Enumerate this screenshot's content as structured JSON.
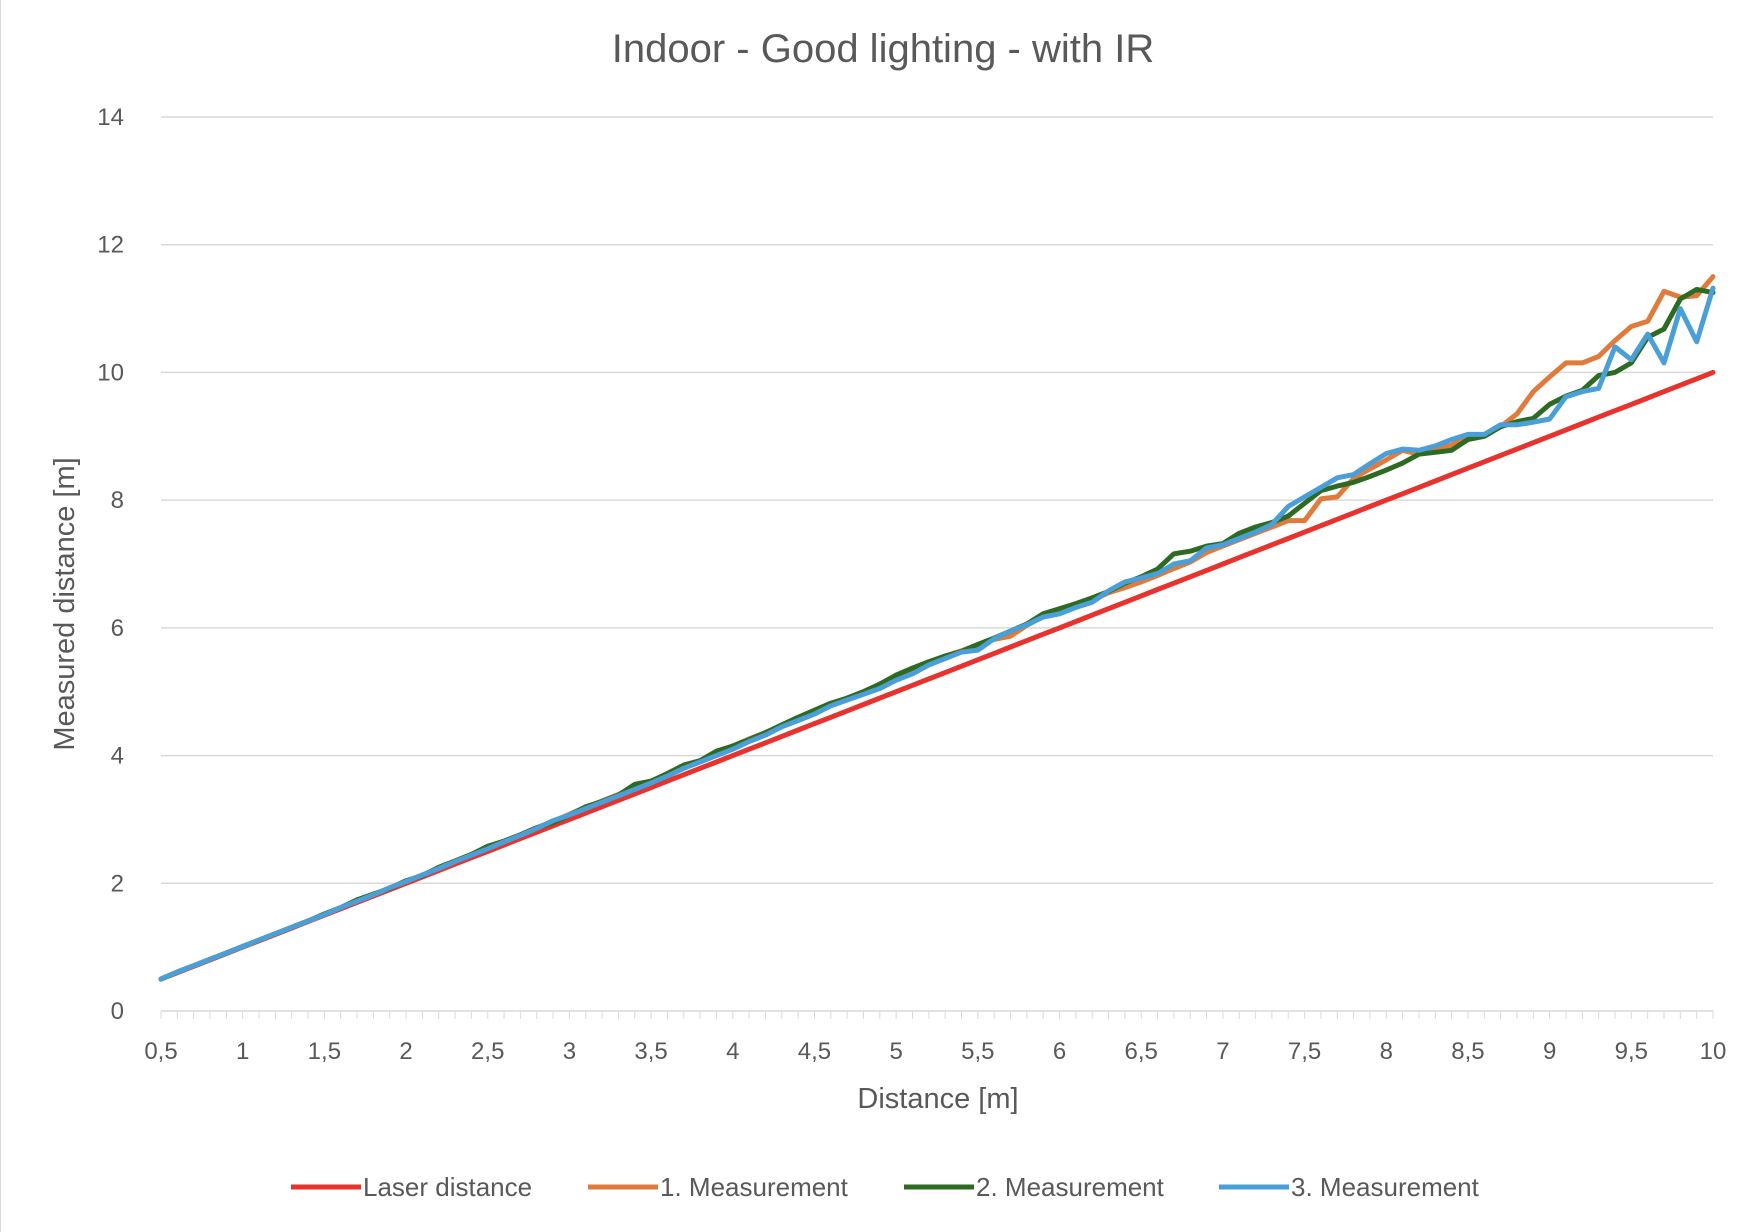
{
  "chart_data": {
    "type": "line",
    "title": "Indoor - Good lighting - with IR",
    "xlabel": "Distance [m]",
    "ylabel": "Measured distance [m]",
    "xlim": [
      0.5,
      10
    ],
    "ylim": [
      0,
      14
    ],
    "x_ticks": [
      "0,5",
      "1",
      "1,5",
      "2",
      "2,5",
      "3",
      "3,5",
      "4",
      "4,5",
      "5",
      "5,5",
      "6",
      "6,5",
      "7",
      "7,5",
      "8",
      "8,5",
      "9",
      "9,5",
      "10"
    ],
    "y_ticks": [
      "0",
      "2",
      "4",
      "6",
      "8",
      "10",
      "12",
      "14"
    ],
    "grid": "horizontal",
    "legend_position": "bottom",
    "colors": {
      "laser": "#e8322d",
      "m1": "#e07b3c",
      "m2": "#2e6b22",
      "m3": "#4a9fd8",
      "grid": "#d9d9d9",
      "text": "#595959"
    },
    "x": [
      0.5,
      0.6,
      0.7,
      0.8,
      0.9,
      1.0,
      1.1,
      1.2,
      1.3,
      1.4,
      1.5,
      1.6,
      1.7,
      1.8,
      1.9,
      2.0,
      2.1,
      2.2,
      2.3,
      2.4,
      2.5,
      2.6,
      2.7,
      2.8,
      2.9,
      3.0,
      3.1,
      3.2,
      3.3,
      3.4,
      3.5,
      3.6,
      3.7,
      3.8,
      3.9,
      4.0,
      4.1,
      4.2,
      4.3,
      4.4,
      4.5,
      4.6,
      4.7,
      4.8,
      4.9,
      5.0,
      5.1,
      5.2,
      5.3,
      5.4,
      5.5,
      5.6,
      5.7,
      5.8,
      5.9,
      6.0,
      6.1,
      6.2,
      6.3,
      6.4,
      6.5,
      6.6,
      6.7,
      6.8,
      6.9,
      7.0,
      7.1,
      7.2,
      7.3,
      7.4,
      7.5,
      7.6,
      7.7,
      7.8,
      7.9,
      8.0,
      8.1,
      8.2,
      8.3,
      8.4,
      8.5,
      8.6,
      8.7,
      8.8,
      8.9,
      9.0,
      9.1,
      9.2,
      9.3,
      9.4,
      9.5,
      9.6,
      9.7,
      9.8,
      9.9,
      10.0
    ],
    "series": [
      {
        "name": "Laser distance",
        "color_key": "laser",
        "values": [
          0.5,
          0.6,
          0.7,
          0.8,
          0.9,
          1.0,
          1.1,
          1.2,
          1.3,
          1.4,
          1.5,
          1.6,
          1.7,
          1.8,
          1.9,
          2.0,
          2.1,
          2.2,
          2.3,
          2.4,
          2.5,
          2.6,
          2.7,
          2.8,
          2.9,
          3.0,
          3.1,
          3.2,
          3.3,
          3.4,
          3.5,
          3.6,
          3.7,
          3.8,
          3.9,
          4.0,
          4.1,
          4.2,
          4.3,
          4.4,
          4.5,
          4.6,
          4.7,
          4.8,
          4.9,
          5.0,
          5.1,
          5.2,
          5.3,
          5.4,
          5.5,
          5.6,
          5.7,
          5.8,
          5.9,
          6.0,
          6.1,
          6.2,
          6.3,
          6.4,
          6.5,
          6.6,
          6.7,
          6.8,
          6.9,
          7.0,
          7.1,
          7.2,
          7.3,
          7.4,
          7.5,
          7.6,
          7.7,
          7.8,
          7.9,
          8.0,
          8.1,
          8.2,
          8.3,
          8.4,
          8.5,
          8.6,
          8.7,
          8.8,
          8.9,
          9.0,
          9.1,
          9.2,
          9.3,
          9.4,
          9.5,
          9.6,
          9.7,
          9.8,
          9.9,
          10.0
        ]
      },
      {
        "name": "1. Measurement",
        "color_key": "m1",
        "values": [
          0.5,
          0.61,
          0.71,
          0.81,
          0.91,
          1.01,
          1.11,
          1.21,
          1.31,
          1.41,
          1.51,
          1.62,
          1.72,
          1.82,
          1.93,
          2.03,
          2.13,
          2.24,
          2.35,
          2.45,
          2.56,
          2.66,
          2.76,
          2.87,
          2.97,
          3.08,
          3.19,
          3.29,
          3.39,
          3.51,
          3.6,
          3.71,
          3.82,
          3.92,
          4.03,
          4.15,
          4.26,
          4.36,
          4.47,
          4.58,
          4.69,
          4.8,
          4.9,
          5.0,
          5.12,
          5.22,
          5.34,
          5.46,
          5.56,
          5.64,
          5.74,
          5.82,
          5.87,
          6.04,
          6.18,
          6.25,
          6.33,
          6.43,
          6.55,
          6.63,
          6.72,
          6.82,
          6.93,
          7.03,
          7.18,
          7.28,
          7.38,
          7.48,
          7.58,
          7.68,
          7.68,
          8.02,
          8.05,
          8.34,
          8.49,
          8.63,
          8.78,
          8.72,
          8.8,
          8.86,
          9.0,
          9.02,
          9.15,
          9.35,
          9.7,
          9.93,
          10.15,
          10.15,
          10.25,
          10.5,
          10.72,
          10.8,
          11.27,
          11.18,
          11.2,
          11.5
        ]
      },
      {
        "name": "2. Measurement",
        "color_key": "m2",
        "values": [
          0.5,
          0.61,
          0.71,
          0.81,
          0.91,
          1.01,
          1.11,
          1.21,
          1.31,
          1.41,
          1.52,
          1.62,
          1.74,
          1.83,
          1.92,
          2.04,
          2.12,
          2.25,
          2.35,
          2.45,
          2.58,
          2.66,
          2.76,
          2.87,
          2.95,
          3.07,
          3.2,
          3.28,
          3.38,
          3.55,
          3.6,
          3.72,
          3.85,
          3.92,
          4.07,
          4.15,
          4.25,
          4.36,
          4.48,
          4.6,
          4.71,
          4.82,
          4.9,
          5.0,
          5.12,
          5.26,
          5.37,
          5.47,
          5.56,
          5.63,
          5.74,
          5.84,
          5.95,
          6.06,
          6.22,
          6.3,
          6.38,
          6.47,
          6.57,
          6.7,
          6.8,
          6.92,
          7.16,
          7.2,
          7.28,
          7.32,
          7.48,
          7.58,
          7.65,
          7.75,
          7.95,
          8.15,
          8.22,
          8.28,
          8.37,
          8.47,
          8.58,
          8.72,
          8.75,
          8.78,
          8.95,
          9.0,
          9.15,
          9.23,
          9.28,
          9.5,
          9.63,
          9.72,
          9.95,
          10.0,
          10.15,
          10.55,
          10.68,
          11.15,
          11.3,
          11.25
        ]
      },
      {
        "name": "3. Measurement",
        "color_key": "m3",
        "values": [
          0.5,
          0.61,
          0.71,
          0.81,
          0.91,
          1.01,
          1.11,
          1.21,
          1.31,
          1.41,
          1.51,
          1.62,
          1.72,
          1.82,
          1.93,
          2.03,
          2.13,
          2.23,
          2.34,
          2.44,
          2.54,
          2.65,
          2.75,
          2.86,
          2.98,
          3.07,
          3.17,
          3.27,
          3.37,
          3.47,
          3.57,
          3.68,
          3.8,
          3.9,
          4.0,
          4.1,
          4.22,
          4.32,
          4.45,
          4.55,
          4.65,
          4.78,
          4.87,
          4.96,
          5.05,
          5.18,
          5.28,
          5.42,
          5.52,
          5.62,
          5.65,
          5.83,
          5.95,
          6.05,
          6.17,
          6.22,
          6.32,
          6.4,
          6.58,
          6.72,
          6.78,
          6.85,
          7.0,
          7.05,
          7.25,
          7.3,
          7.4,
          7.5,
          7.62,
          7.9,
          8.05,
          8.2,
          8.35,
          8.4,
          8.57,
          8.73,
          8.8,
          8.78,
          8.85,
          8.95,
          9.03,
          9.03,
          9.18,
          9.18,
          9.22,
          9.27,
          9.62,
          9.7,
          9.75,
          10.4,
          10.2,
          10.6,
          10.15,
          11.0,
          10.48,
          11.32
        ]
      }
    ],
    "legend": [
      "Laser distance",
      "1. Measurement",
      "2. Measurement",
      "3. Measurement"
    ]
  }
}
